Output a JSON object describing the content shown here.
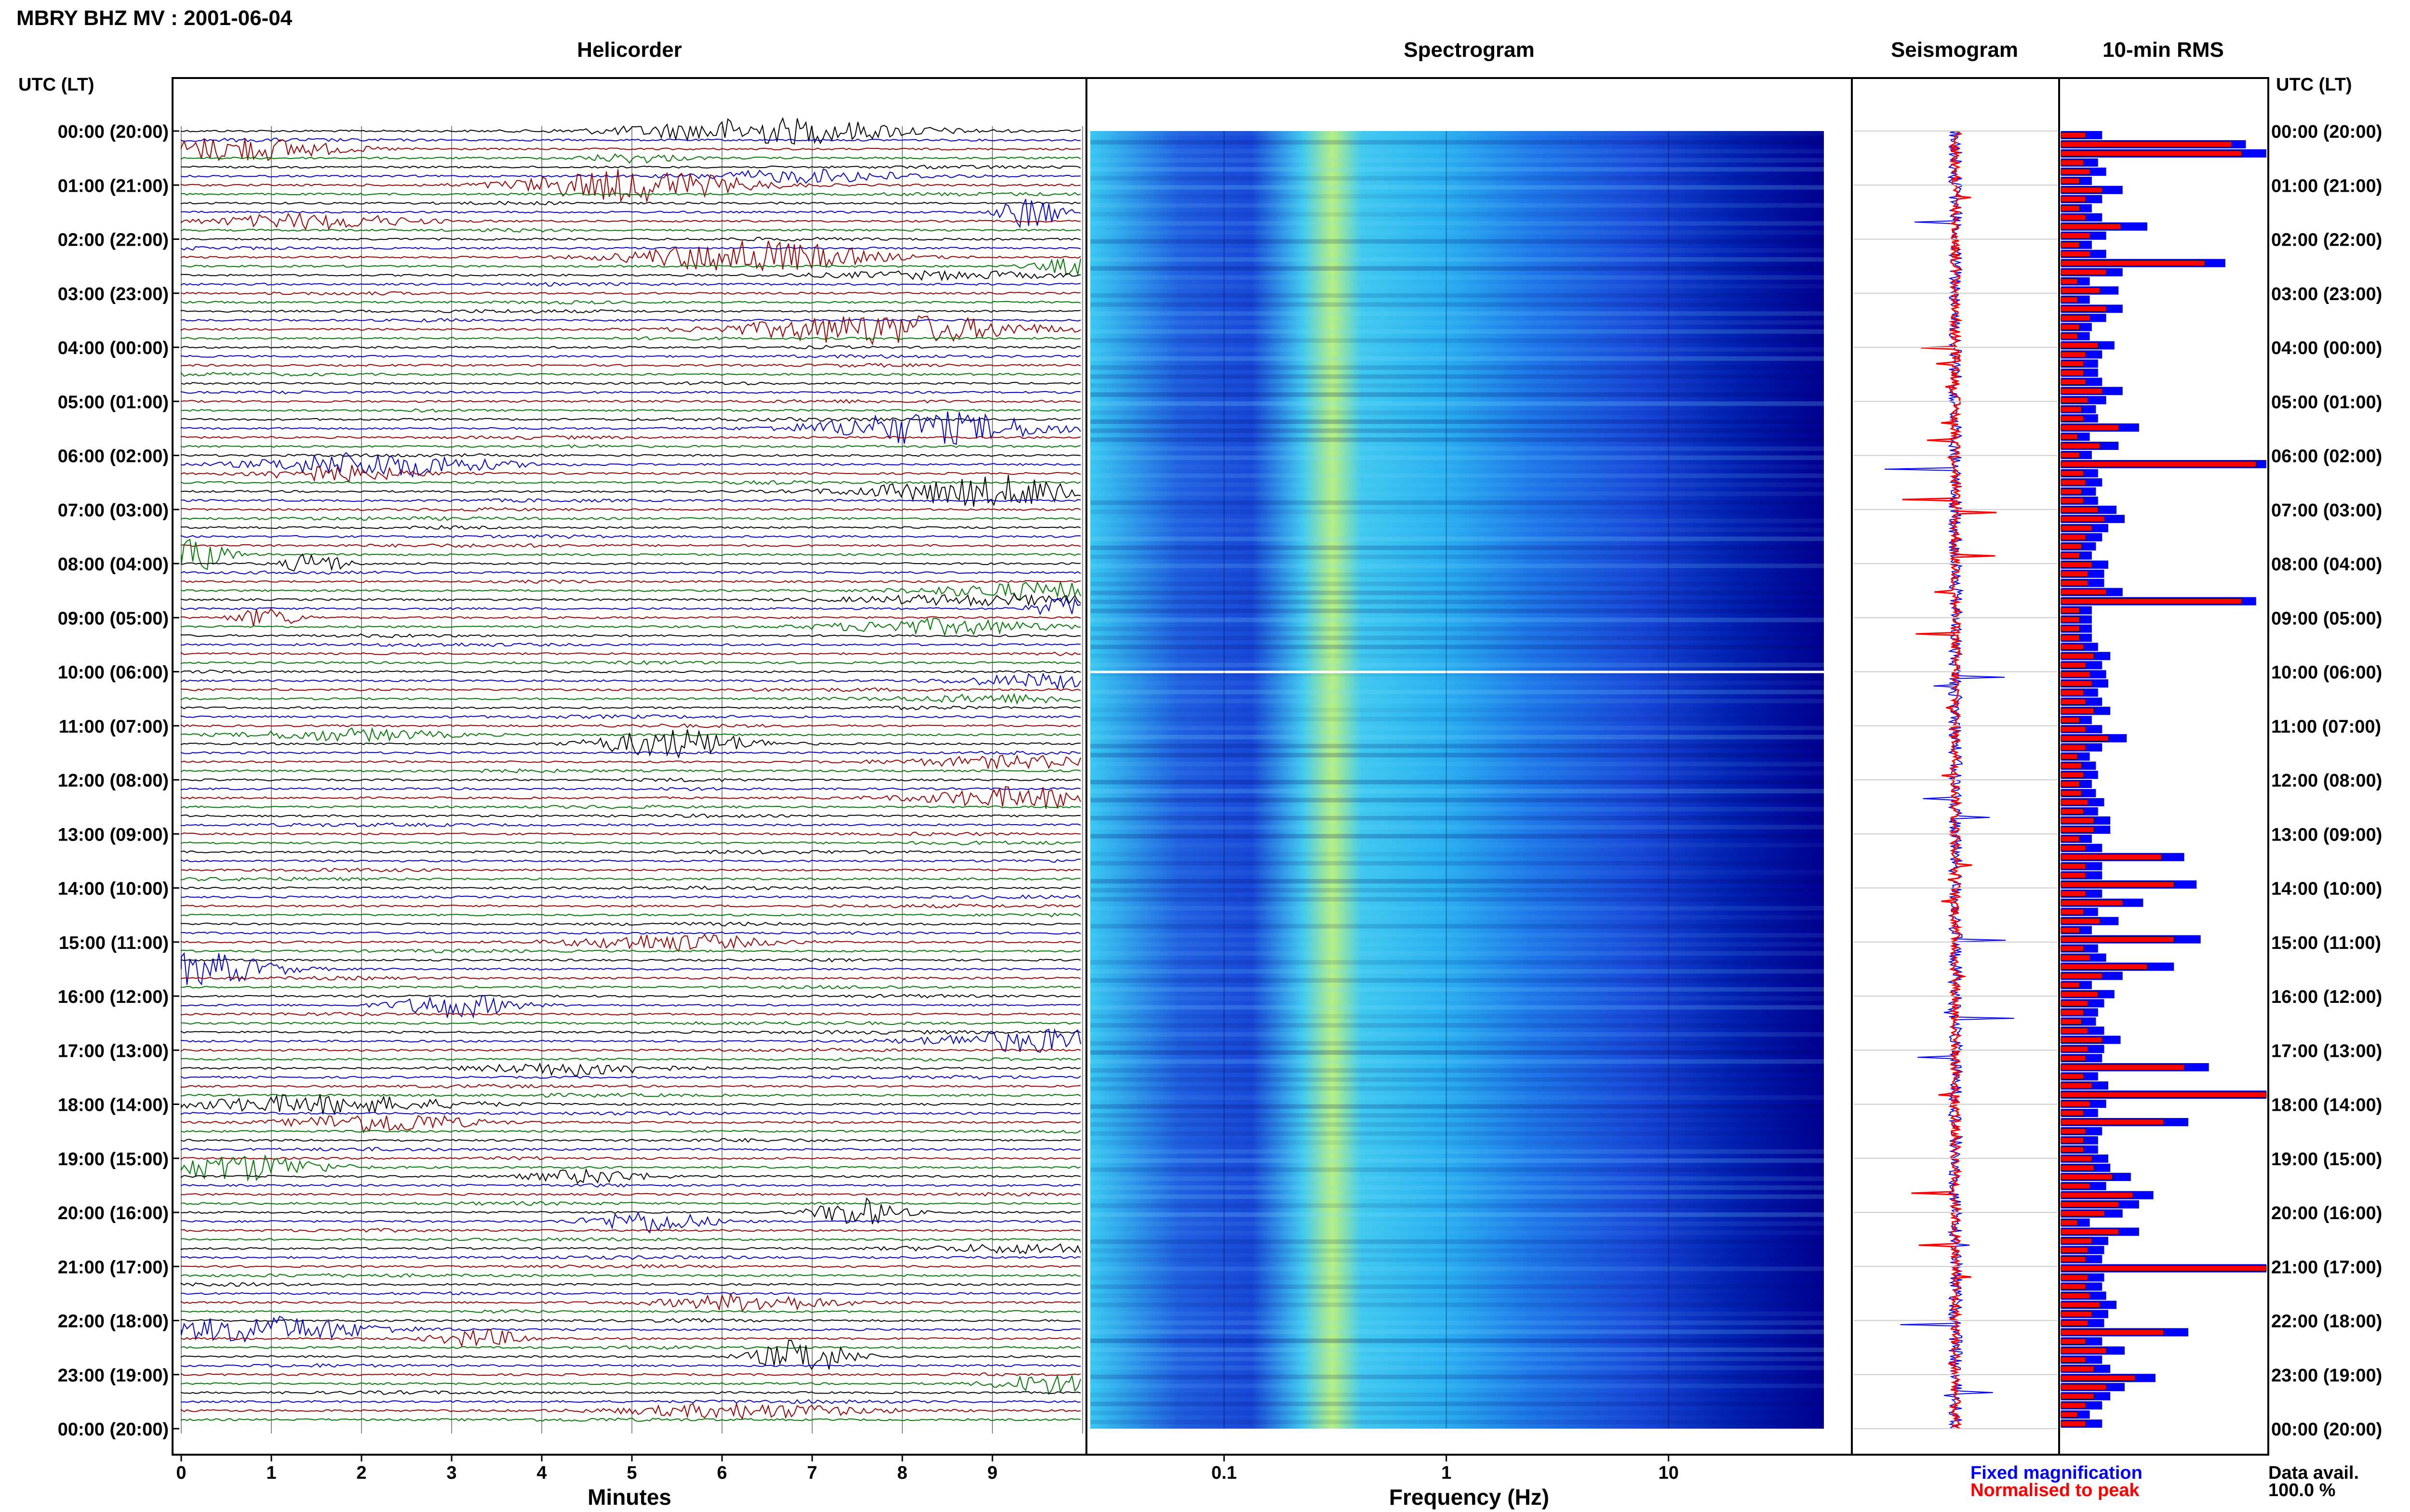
{
  "header": {
    "title": "MBRY BHZ MV : 2001-06-04",
    "utc_label_left": "UTC (LT)",
    "utc_label_right": "UTC (LT)"
  },
  "panels": {
    "helicorder": "Helicorder",
    "spectrogram": "Spectrogram",
    "seismogram": "Seismogram",
    "rms": "10-min RMS"
  },
  "time_labels": [
    "00:00 (20:00)",
    "01:00 (21:00)",
    "02:00 (22:00)",
    "03:00 (23:00)",
    "04:00 (00:00)",
    "05:00 (01:00)",
    "06:00 (02:00)",
    "07:00 (03:00)",
    "08:00 (04:00)",
    "09:00 (05:00)",
    "10:00 (06:00)",
    "11:00 (07:00)",
    "12:00 (08:00)",
    "13:00 (09:00)",
    "14:00 (10:00)",
    "15:00 (11:00)",
    "16:00 (12:00)",
    "17:00 (13:00)",
    "18:00 (14:00)",
    "19:00 (15:00)",
    "20:00 (16:00)",
    "21:00 (17:00)",
    "22:00 (18:00)",
    "23:00 (19:00)",
    "00:00 (20:00)"
  ],
  "axes": {
    "minutes_label": "Minutes",
    "minutes_ticks": [
      "0",
      "1",
      "2",
      "3",
      "4",
      "5",
      "6",
      "7",
      "8",
      "9"
    ],
    "frequency_label": "Frequency (Hz)",
    "frequency_ticks": [
      "0.1",
      "1",
      "10"
    ]
  },
  "legend": {
    "fixed": "Fixed magnification",
    "normalised": "Normalised to peak",
    "fixed_color": "#0000ff",
    "normalised_color": "#ff0000"
  },
  "data_avail": {
    "label": "Data avail.",
    "value": "100.0 %"
  },
  "colors": {
    "trace_cycle": [
      "#000000",
      "#0000cc",
      "#990000",
      "#007700"
    ],
    "spectrogram_low": "#000080",
    "spectrogram_mid": "#40c0ff",
    "spectrogram_high": "#ffff40"
  },
  "chart_data": {
    "type": "bar",
    "title": "10-min RMS",
    "categories_note": "",
    "normalised_to_peak": [
      0.12,
      0.83,
      0.88,
      0.11,
      0.14,
      0.09,
      0.2,
      0.12,
      0.09,
      0.12,
      0.29,
      0.14,
      0.09,
      0.14,
      0.7,
      0.22,
      0.08,
      0.19,
      0.08,
      0.22,
      0.14,
      0.09,
      0.08,
      0.18,
      0.12,
      0.11,
      0.11,
      0.12,
      0.2,
      0.13,
      0.1,
      0.11,
      0.28,
      0.08,
      0.19,
      0.09,
      0.95,
      0.11,
      0.12,
      0.1,
      0.11,
      0.18,
      0.21,
      0.15,
      0.12,
      0.1,
      0.09,
      0.15,
      0.13,
      0.13,
      0.22,
      0.88,
      0.09,
      0.09,
      0.09,
      0.09,
      0.11,
      0.16,
      0.12,
      0.14,
      0.15,
      0.11,
      0.12,
      0.16,
      0.09,
      0.12,
      0.23,
      0.12,
      0.08,
      0.1,
      0.11,
      0.09,
      0.1,
      0.13,
      0.11,
      0.16,
      0.16,
      0.09,
      0.12,
      0.49,
      0.12,
      0.12,
      0.55,
      0.12,
      0.3,
      0.11,
      0.19,
      0.09,
      0.55,
      0.11,
      0.14,
      0.42,
      0.2,
      0.09,
      0.18,
      0.13,
      0.11,
      0.1,
      0.13,
      0.2,
      0.13,
      0.12,
      0.6,
      0.11,
      0.15,
      1.0,
      0.14,
      0.11,
      0.5,
      0.12,
      0.11,
      0.11,
      0.15,
      0.16,
      0.25,
      0.14,
      0.35,
      0.28,
      0.21,
      0.08,
      0.28,
      0.15,
      0.13,
      0.12,
      1.0,
      0.13,
      0.12,
      0.14,
      0.19,
      0.15,
      0.13,
      0.5,
      0.12,
      0.22,
      0.12,
      0.16,
      0.36,
      0.22,
      0.16,
      0.12,
      0.08,
      0.12
    ],
    "fixed_magnification": [
      0.2,
      0.9,
      1.0,
      0.18,
      0.22,
      0.15,
      0.3,
      0.2,
      0.15,
      0.2,
      0.42,
      0.22,
      0.15,
      0.22,
      0.8,
      0.3,
      0.14,
      0.28,
      0.14,
      0.3,
      0.22,
      0.15,
      0.14,
      0.26,
      0.2,
      0.18,
      0.18,
      0.2,
      0.3,
      0.22,
      0.17,
      0.18,
      0.38,
      0.14,
      0.28,
      0.15,
      1.0,
      0.18,
      0.2,
      0.17,
      0.18,
      0.27,
      0.31,
      0.23,
      0.2,
      0.17,
      0.15,
      0.23,
      0.21,
      0.21,
      0.3,
      0.95,
      0.15,
      0.15,
      0.15,
      0.15,
      0.18,
      0.24,
      0.2,
      0.22,
      0.23,
      0.18,
      0.2,
      0.24,
      0.15,
      0.2,
      0.32,
      0.2,
      0.14,
      0.17,
      0.18,
      0.15,
      0.17,
      0.21,
      0.18,
      0.24,
      0.24,
      0.15,
      0.2,
      0.6,
      0.2,
      0.2,
      0.66,
      0.2,
      0.4,
      0.18,
      0.28,
      0.15,
      0.68,
      0.18,
      0.22,
      0.55,
      0.3,
      0.15,
      0.26,
      0.21,
      0.18,
      0.17,
      0.21,
      0.29,
      0.21,
      0.2,
      0.72,
      0.18,
      0.23,
      1.0,
      0.22,
      0.18,
      0.62,
      0.2,
      0.18,
      0.18,
      0.23,
      0.24,
      0.34,
      0.22,
      0.45,
      0.38,
      0.3,
      0.14,
      0.38,
      0.23,
      0.21,
      0.2,
      1.0,
      0.21,
      0.2,
      0.22,
      0.27,
      0.23,
      0.21,
      0.62,
      0.2,
      0.31,
      0.2,
      0.24,
      0.46,
      0.31,
      0.24,
      0.2,
      0.14,
      0.2
    ],
    "xlabel": "",
    "ylabel": ""
  }
}
